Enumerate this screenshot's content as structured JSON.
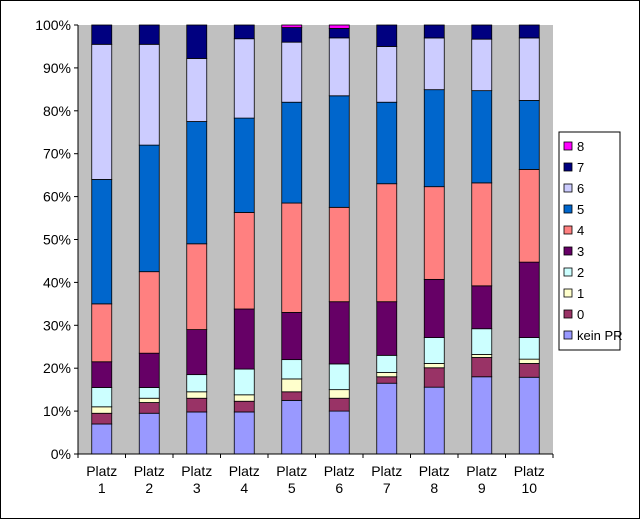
{
  "chart_data": {
    "type": "bar",
    "stacked": "percent",
    "categories": [
      "Platz 1",
      "Platz 2",
      "Platz 3",
      "Platz 4",
      "Platz 5",
      "Platz 6",
      "Platz 7",
      "Platz 8",
      "Platz 9",
      "Platz 10"
    ],
    "category_lines": [
      [
        "Platz",
        "1"
      ],
      [
        "Platz",
        "2"
      ],
      [
        "Platz",
        "3"
      ],
      [
        "Platz",
        "4"
      ],
      [
        "Platz",
        "5"
      ],
      [
        "Platz",
        "6"
      ],
      [
        "Platz",
        "7"
      ],
      [
        "Platz",
        "8"
      ],
      [
        "Platz",
        "9"
      ],
      [
        "Platz",
        "10"
      ]
    ],
    "y_ticks": [
      "0%",
      "10%",
      "20%",
      "30%",
      "40%",
      "50%",
      "60%",
      "70%",
      "80%",
      "90%",
      "100%"
    ],
    "ylim": [
      0,
      100
    ],
    "grid": false,
    "legend_position": "right",
    "series": [
      {
        "name": "kein PR",
        "color": "#9999FF",
        "values": [
          7.0,
          9.5,
          9.8,
          9.8,
          12.5,
          10.0,
          16.5,
          15.5,
          18.0,
          17.8
        ]
      },
      {
        "name": "0",
        "color": "#993366",
        "values": [
          2.5,
          2.5,
          3.2,
          2.5,
          2.0,
          3.0,
          1.5,
          4.5,
          4.5,
          3.2
        ]
      },
      {
        "name": "1",
        "color": "#FFFFCC",
        "values": [
          1.5,
          1.0,
          1.5,
          1.5,
          3.0,
          2.0,
          1.0,
          1.0,
          0.7,
          1.0
        ]
      },
      {
        "name": "2",
        "color": "#CCFFFF",
        "values": [
          4.5,
          2.5,
          4.0,
          6.0,
          4.5,
          6.0,
          4.0,
          6.0,
          6.0,
          5.0
        ]
      },
      {
        "name": "3",
        "color": "#660066",
        "values": [
          6.0,
          8.0,
          10.5,
          14.0,
          11.0,
          14.5,
          12.5,
          13.5,
          10.0,
          17.5
        ]
      },
      {
        "name": "4",
        "color": "#FF8080",
        "values": [
          13.5,
          19.0,
          20.0,
          22.5,
          25.5,
          22.0,
          27.5,
          21.5,
          24.0,
          21.5
        ]
      },
      {
        "name": "5",
        "color": "#0066CC",
        "values": [
          29.0,
          29.5,
          28.5,
          22.0,
          23.5,
          26.0,
          19.0,
          22.5,
          21.5,
          16.0
        ]
      },
      {
        "name": "6",
        "color": "#CCCCFF",
        "values": [
          31.5,
          23.5,
          14.7,
          18.5,
          14.0,
          13.5,
          13.0,
          12.0,
          12.0,
          14.5
        ]
      },
      {
        "name": "7",
        "color": "#000080",
        "values": [
          4.5,
          4.5,
          7.8,
          3.2,
          3.4,
          2.2,
          5.0,
          3.0,
          3.3,
          3.0
        ]
      },
      {
        "name": "8",
        "color": "#FF00FF",
        "values": [
          0,
          0,
          0,
          0,
          0.6,
          0.8,
          0,
          0,
          0,
          0
        ]
      }
    ]
  }
}
